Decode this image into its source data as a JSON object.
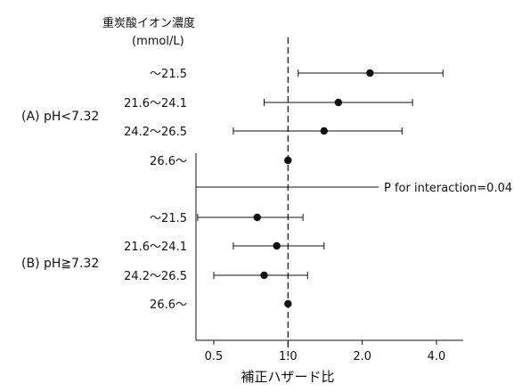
{
  "chart_data": {
    "type": "forest",
    "header": [
      "重炭酸イオン濃度",
      "(mmol/L)"
    ],
    "xlabel": "補正ハザード比",
    "xscale": "log",
    "xlim": [
      0.4,
      5.0
    ],
    "xticks": [
      0.5,
      1.0,
      2.0,
      4.0
    ],
    "xtick_labels": [
      "0.5",
      "1.0",
      "2.0",
      "4.0"
    ],
    "reference_line": 1.0,
    "interaction_label": "P for interaction=0.04",
    "groups": [
      {
        "label": "(A) pH<7.32",
        "rows": [
          {
            "label": "～21.5",
            "hr": 2.15,
            "lo": 1.1,
            "hi": 4.25
          },
          {
            "label": "21.6～24.1",
            "hr": 1.6,
            "lo": 0.8,
            "hi": 3.2
          },
          {
            "label": "24.2～26.5",
            "hr": 1.4,
            "lo": 0.6,
            "hi": 2.9
          },
          {
            "label": "26.6～",
            "hr": 1.0,
            "lo": null,
            "hi": null
          }
        ]
      },
      {
        "label": "(B) pH≧7.32",
        "rows": [
          {
            "label": "～21.5",
            "hr": 0.75,
            "lo": 0.43,
            "hi": 1.15
          },
          {
            "label": "21.6～24.1",
            "hr": 0.9,
            "lo": 0.6,
            "hi": 1.4
          },
          {
            "label": "24.2～26.5",
            "hr": 0.8,
            "lo": 0.5,
            "hi": 1.2
          },
          {
            "label": "26.6～",
            "hr": 1.0,
            "lo": null,
            "hi": null
          }
        ]
      }
    ]
  }
}
